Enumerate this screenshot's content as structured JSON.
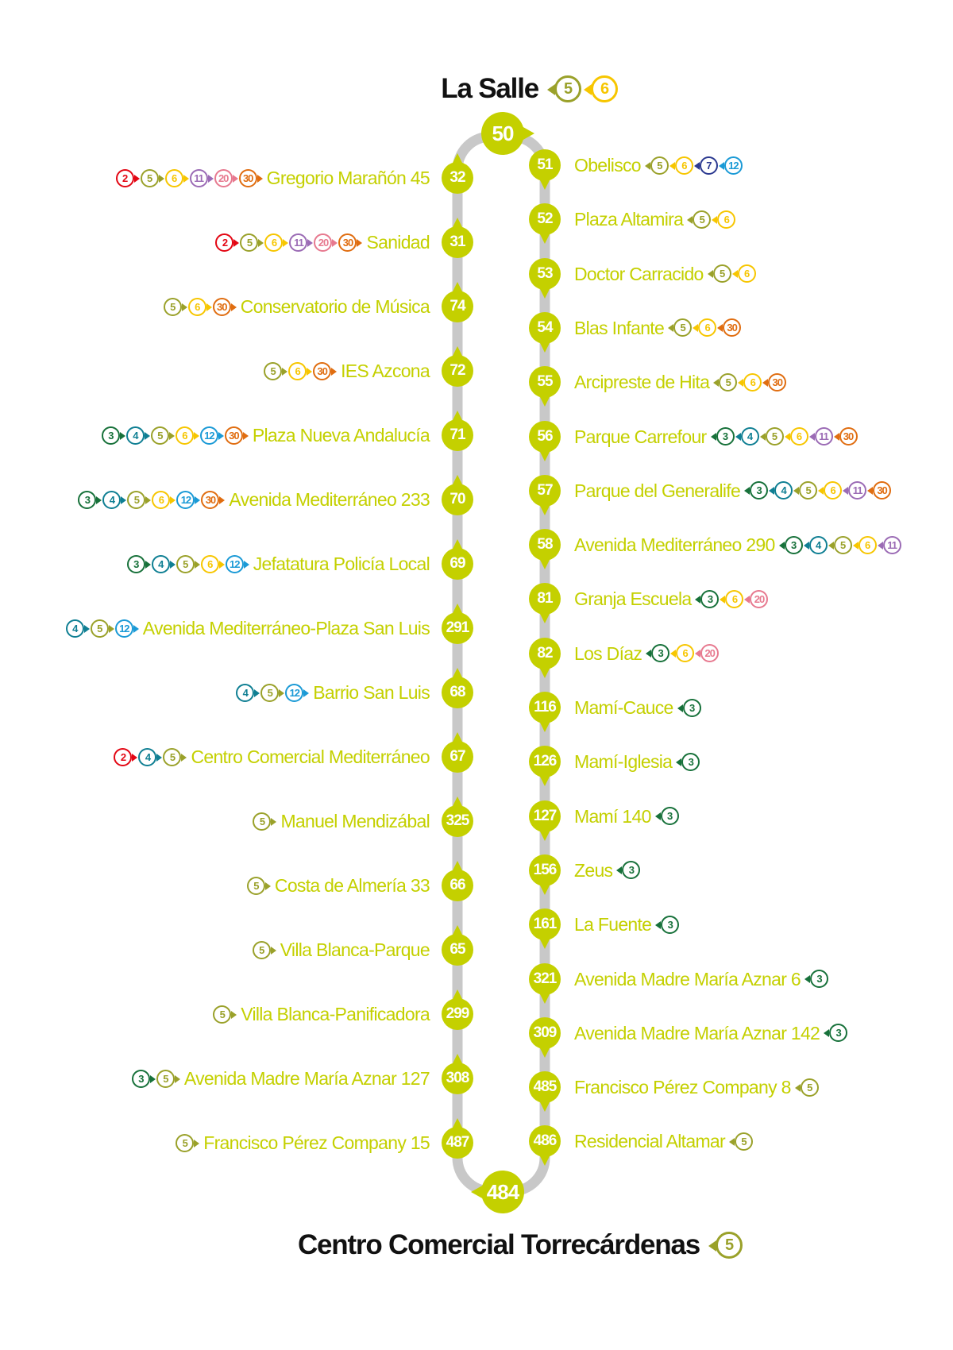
{
  "colors": {
    "stop": "#c4d000",
    "spine": "#c8c8c8",
    "title": "#111111",
    "lines": {
      "2": "#e30613",
      "3": "#17713a",
      "4": "#0f7f93",
      "5": "#9aa12a",
      "6": "#f7c600",
      "7": "#2b3990",
      "11": "#9b6bb5",
      "12": "#1b9ad6",
      "20": "#e7798f",
      "30": "#e06d10"
    }
  },
  "start": {
    "name": "La Salle",
    "code": "50",
    "lines": [
      "5",
      "6"
    ]
  },
  "end": {
    "name": "Centro Comercial Torrecárdenas",
    "code": "484",
    "lines": [
      "5"
    ]
  },
  "left_stops": [
    {
      "code": "32",
      "name": "Gregorio Marañón 45",
      "lines": [
        "2",
        "5",
        "6",
        "11",
        "20",
        "30"
      ]
    },
    {
      "code": "31",
      "name": "Sanidad",
      "lines": [
        "2",
        "5",
        "6",
        "11",
        "20",
        "30"
      ]
    },
    {
      "code": "74",
      "name": "Conservatorio de Música",
      "lines": [
        "5",
        "6",
        "30"
      ]
    },
    {
      "code": "72",
      "name": "IES Azcona",
      "lines": [
        "5",
        "6",
        "30"
      ]
    },
    {
      "code": "71",
      "name": "Plaza Nueva Andalucía",
      "lines": [
        "3",
        "4",
        "5",
        "6",
        "12",
        "30"
      ]
    },
    {
      "code": "70",
      "name": "Avenida Mediterráneo 233",
      "lines": [
        "3",
        "4",
        "5",
        "6",
        "12",
        "30"
      ]
    },
    {
      "code": "69",
      "name": "Jefatatura Policía Local",
      "lines": [
        "3",
        "4",
        "5",
        "6",
        "12"
      ]
    },
    {
      "code": "291",
      "name": "Avenida Mediterráneo-Plaza San Luis",
      "lines": [
        "4",
        "5",
        "12"
      ]
    },
    {
      "code": "68",
      "name": "Barrio San Luis",
      "lines": [
        "4",
        "5",
        "12"
      ]
    },
    {
      "code": "67",
      "name": "Centro Comercial Mediterráneo",
      "lines": [
        "2",
        "4",
        "5"
      ]
    },
    {
      "code": "325",
      "name": "Manuel Mendizábal",
      "lines": [
        "5"
      ]
    },
    {
      "code": "66",
      "name": "Costa de Almería 33",
      "lines": [
        "5"
      ]
    },
    {
      "code": "65",
      "name": "Villa Blanca-Parque",
      "lines": [
        "5"
      ]
    },
    {
      "code": "299",
      "name": "Villa Blanca-Panificadora",
      "lines": [
        "5"
      ]
    },
    {
      "code": "308",
      "name": "Avenida Madre María Aznar 127",
      "lines": [
        "3",
        "5"
      ]
    },
    {
      "code": "487",
      "name": "Francisco Pérez Company 15",
      "lines": [
        "5"
      ]
    }
  ],
  "right_stops": [
    {
      "code": "51",
      "name": "Obelisco",
      "lines": [
        "5",
        "6",
        "7",
        "12"
      ]
    },
    {
      "code": "52",
      "name": "Plaza Altamira",
      "lines": [
        "5",
        "6"
      ]
    },
    {
      "code": "53",
      "name": "Doctor Carracido",
      "lines": [
        "5",
        "6"
      ]
    },
    {
      "code": "54",
      "name": "Blas Infante",
      "lines": [
        "5",
        "6",
        "30"
      ]
    },
    {
      "code": "55",
      "name": "Arcipreste de Hita",
      "lines": [
        "5",
        "6",
        "30"
      ]
    },
    {
      "code": "56",
      "name": "Parque Carrefour",
      "lines": [
        "3",
        "4",
        "5",
        "6",
        "11",
        "30"
      ]
    },
    {
      "code": "57",
      "name": "Parque del Generalife",
      "lines": [
        "3",
        "4",
        "5",
        "6",
        "11",
        "30"
      ]
    },
    {
      "code": "58",
      "name": "Avenida Mediterráneo 290",
      "lines": [
        "3",
        "4",
        "5",
        "6",
        "11"
      ]
    },
    {
      "code": "81",
      "name": "Granja Escuela",
      "lines": [
        "3",
        "6",
        "20"
      ]
    },
    {
      "code": "82",
      "name": "Los Díaz",
      "lines": [
        "3",
        "6",
        "20"
      ]
    },
    {
      "code": "116",
      "name": "Mamí-Cauce",
      "lines": [
        "3"
      ]
    },
    {
      "code": "126",
      "name": "Mamí-Iglesia",
      "lines": [
        "3"
      ]
    },
    {
      "code": "127",
      "name": "Mamí 140",
      "lines": [
        "3"
      ]
    },
    {
      "code": "156",
      "name": "Zeus",
      "lines": [
        "3"
      ]
    },
    {
      "code": "161",
      "name": "La Fuente",
      "lines": [
        "3"
      ]
    },
    {
      "code": "321",
      "name": "Avenida Madre María Aznar 6",
      "lines": [
        "3"
      ]
    },
    {
      "code": "309",
      "name": "Avenida Madre María Aznar 142",
      "lines": [
        "3"
      ]
    },
    {
      "code": "485",
      "name": "Francisco Pérez Company 8",
      "lines": [
        "5"
      ]
    },
    {
      "code": "486",
      "name": "Residencial Altamar",
      "lines": [
        "5"
      ]
    }
  ]
}
